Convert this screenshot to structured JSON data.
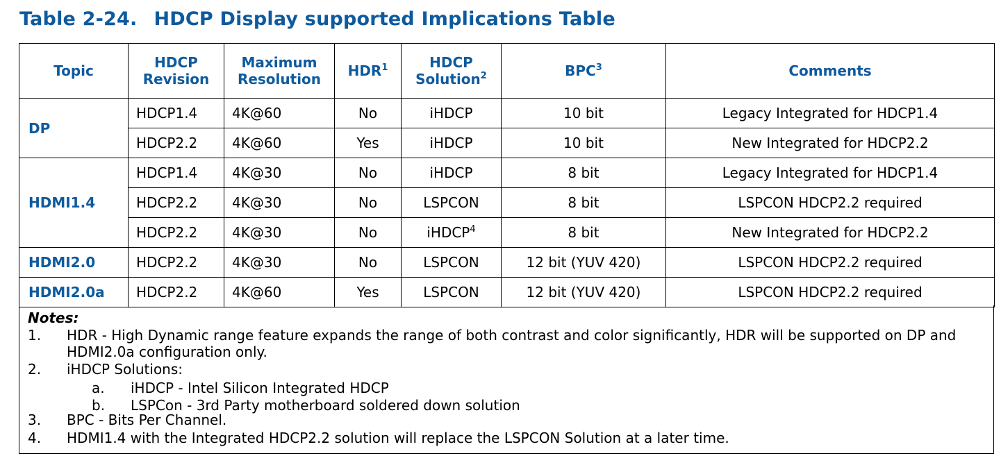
{
  "title": {
    "number": "Table 2-24.",
    "text": "HDCP Display supported Implications Table"
  },
  "headers": {
    "topic": "Topic",
    "revision_1": "HDCP",
    "revision_2": "Revision",
    "resolution_1": "Maximum",
    "resolution_2": "Resolution",
    "hdr": "HDR",
    "hdr_sup": "1",
    "solution_1": "HDCP",
    "solution_2": "Solution",
    "solution_sup": "2",
    "bpc": "BPC",
    "bpc_sup": "3",
    "comments": "Comments"
  },
  "rows": [
    {
      "topic": "DP",
      "revision": "HDCP1.4",
      "resolution": "4K@60",
      "hdr": "No",
      "solution": "iHDCP",
      "solution_sup": "",
      "bpc": "10 bit",
      "comments": "Legacy Integrated for HDCP1.4"
    },
    {
      "topic": "",
      "revision": "HDCP2.2",
      "resolution": "4K@60",
      "hdr": "Yes",
      "solution": "iHDCP",
      "solution_sup": "",
      "bpc": "10 bit",
      "comments": "New Integrated for HDCP2.2"
    },
    {
      "topic": "HDMI1.4",
      "revision": "HDCP1.4",
      "resolution": "4K@30",
      "hdr": "No",
      "solution": "iHDCP",
      "solution_sup": "",
      "bpc": "8 bit",
      "comments": "Legacy Integrated for HDCP1.4"
    },
    {
      "topic": "",
      "revision": "HDCP2.2",
      "resolution": "4K@30",
      "hdr": "No",
      "solution": "LSPCON",
      "solution_sup": "",
      "bpc": "8 bit",
      "comments": "LSPCON HDCP2.2 required"
    },
    {
      "topic": "",
      "revision": "HDCP2.2",
      "resolution": "4K@30",
      "hdr": "No",
      "solution": "iHDCP",
      "solution_sup": "4",
      "bpc": "8 bit",
      "comments": "New Integrated for HDCP2.2"
    },
    {
      "topic": "HDMI2.0",
      "revision": "HDCP2.2",
      "resolution": "4K@30",
      "hdr": "No",
      "solution": "LSPCON",
      "solution_sup": "",
      "bpc": "12 bit (YUV 420)",
      "comments": "LSPCON HDCP2.2 required"
    },
    {
      "topic": "HDMI2.0a",
      "revision": "HDCP2.2",
      "resolution": "4K@60",
      "hdr": "Yes",
      "solution": "LSPCON",
      "solution_sup": "",
      "bpc": "12 bit (YUV 420)",
      "comments": "LSPCON HDCP2.2 required"
    }
  ],
  "notes": {
    "heading": "Notes:",
    "items": [
      {
        "num": "1.",
        "text": "HDR - High Dynamic range feature expands the range of both contrast and color significantly, HDR will be supported on DP and HDMI2.0a configuration only."
      },
      {
        "num": "2.",
        "text": "iHDCP Solutions:"
      },
      {
        "num": "3.",
        "text": "BPC - Bits Per Channel."
      },
      {
        "num": "4.",
        "text": "HDMI1.4 with the Integrated HDCP2.2 solution will replace the LSPCON Solution at a later time."
      }
    ],
    "sub_items": [
      {
        "num": "a.",
        "text": "iHDCP - Intel Silicon Integrated HDCP"
      },
      {
        "num": "b.",
        "text": "LSPCon - 3rd Party motherboard soldered down solution"
      }
    ]
  }
}
